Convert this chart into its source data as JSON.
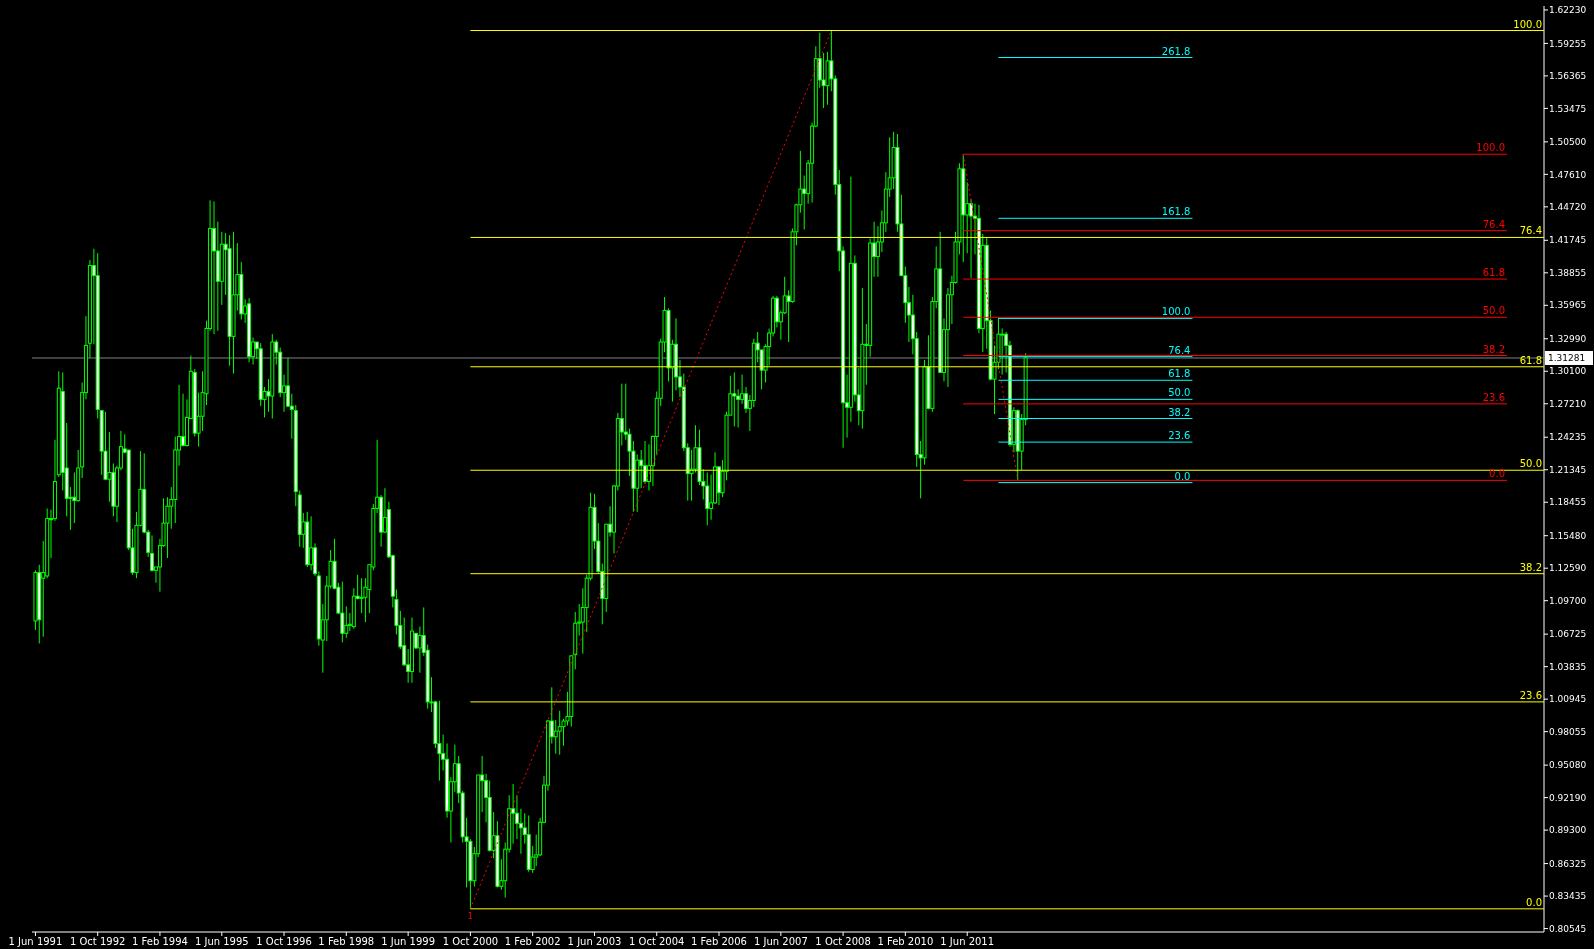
{
  "chart_data": {
    "type": "candlestick",
    "color": "#00ff00",
    "xlim": [
      "1991-05-05",
      "2023-10-18"
    ],
    "ylim": [
      0.8024,
      1.6258
    ],
    "xticks": [
      {
        "value": "1991-06-01",
        "label": "1 Jun 1991"
      },
      {
        "value": "1992-10-01",
        "label": "1 Oct 1992"
      },
      {
        "value": "1994-02-01",
        "label": "1 Feb 1994"
      },
      {
        "value": "1995-06-01",
        "label": "1 Jun 1995"
      },
      {
        "value": "1996-10-01",
        "label": "1 Oct 1996"
      },
      {
        "value": "1998-02-01",
        "label": "1 Feb 1998"
      },
      {
        "value": "1999-06-01",
        "label": "1 Jun 1999"
      },
      {
        "value": "2000-10-01",
        "label": "1 Oct 2000"
      },
      {
        "value": "2002-02-01",
        "label": "1 Feb 2002"
      },
      {
        "value": "2003-06-01",
        "label": "1 Jun 2003"
      },
      {
        "value": "2004-10-01",
        "label": "1 Oct 2004"
      },
      {
        "value": "2006-02-01",
        "label": "1 Feb 2006"
      },
      {
        "value": "2007-06-01",
        "label": "1 Jun 2007"
      },
      {
        "value": "2008-10-01",
        "label": "1 Oct 2008"
      },
      {
        "value": "2010-02-01",
        "label": "1 Feb 2010"
      },
      {
        "value": "2011-06-01",
        "label": "1 Jun 2011"
      }
    ],
    "yticks": [
      {
        "value": 1.6223,
        "label": "1.62230"
      },
      {
        "value": 1.59255,
        "label": "1.59255"
      },
      {
        "value": 1.56365,
        "label": "1.56365"
      },
      {
        "value": 1.53475,
        "label": "1.53475"
      },
      {
        "value": 1.505,
        "label": "1.50500"
      },
      {
        "value": 1.4761,
        "label": "1.47610"
      },
      {
        "value": 1.4472,
        "label": "1.44720"
      },
      {
        "value": 1.41745,
        "label": "1.41745"
      },
      {
        "value": 1.38855,
        "label": "1.38855"
      },
      {
        "value": 1.35965,
        "label": "1.35965"
      },
      {
        "value": 1.3299,
        "label": "1.32990"
      },
      {
        "value": 1.301,
        "label": "1.30100"
      },
      {
        "value": 1.2721,
        "label": "1.27210"
      },
      {
        "value": 1.24235,
        "label": "1.24235"
      },
      {
        "value": 1.21345,
        "label": "1.21345"
      },
      {
        "value": 1.18455,
        "label": "1.18455"
      },
      {
        "value": 1.1548,
        "label": "1.15480"
      },
      {
        "value": 1.1259,
        "label": "1.12590"
      },
      {
        "value": 1.097,
        "label": "1.09700"
      },
      {
        "value": 1.06725,
        "label": "1.06725"
      },
      {
        "value": 1.03835,
        "label": "1.03835"
      },
      {
        "value": 1.00945,
        "label": "1.00945"
      },
      {
        "value": 0.98055,
        "label": "0.98055"
      },
      {
        "value": 0.9508,
        "label": "0.95080"
      },
      {
        "value": 0.9219,
        "label": "0.92190"
      },
      {
        "value": 0.893,
        "label": "0.89300"
      },
      {
        "value": 0.86325,
        "label": "0.86325"
      },
      {
        "value": 0.83435,
        "label": "0.83435"
      },
      {
        "value": 0.80545,
        "label": "0.80545"
      }
    ],
    "ref_lines": [
      {
        "axis": "y",
        "value": 1.31281,
        "label": "1.31281",
        "color": "#808080"
      }
    ],
    "annotations": [
      {
        "text": "1",
        "x": "2000-10",
        "y": 0.823
      }
    ],
    "x": [
      "1991-06",
      "1991-07",
      "1991-08",
      "1991-09",
      "1991-10",
      "1991-11",
      "1991-12",
      "1992-01",
      "1992-02",
      "1992-03",
      "1992-04",
      "1992-05",
      "1992-06",
      "1992-07",
      "1992-08",
      "1992-09",
      "1992-10",
      "1992-11",
      "1992-12",
      "1993-01",
      "1993-02",
      "1993-03",
      "1993-04",
      "1993-05",
      "1993-06",
      "1993-07",
      "1993-08",
      "1993-09",
      "1993-10",
      "1993-11",
      "1993-12",
      "1994-01",
      "1994-02",
      "1994-03",
      "1994-04",
      "1994-05",
      "1994-06",
      "1994-07",
      "1994-08",
      "1994-09",
      "1994-10",
      "1994-11",
      "1994-12",
      "1995-01",
      "1995-02",
      "1995-03",
      "1995-04",
      "1995-05",
      "1995-06",
      "1995-07",
      "1995-08",
      "1995-09",
      "1995-10",
      "1995-11",
      "1995-12",
      "1996-01",
      "1996-02",
      "1996-03",
      "1996-04",
      "1996-05",
      "1996-06",
      "1996-07",
      "1996-08",
      "1996-09",
      "1996-10",
      "1996-11",
      "1996-12",
      "1997-01",
      "1997-02",
      "1997-03",
      "1997-04",
      "1997-05",
      "1997-06",
      "1997-07",
      "1997-08",
      "1997-09",
      "1997-10",
      "1997-11",
      "1997-12",
      "1998-01",
      "1998-02",
      "1998-03",
      "1998-04",
      "1998-05",
      "1998-06",
      "1998-07",
      "1998-08",
      "1998-09",
      "1998-10",
      "1998-11",
      "1998-12",
      "1999-01",
      "1999-02",
      "1999-03",
      "1999-04",
      "1999-05",
      "1999-06",
      "1999-07",
      "1999-08",
      "1999-09",
      "1999-10",
      "1999-11",
      "1999-12",
      "2000-01",
      "2000-02",
      "2000-03",
      "2000-04",
      "2000-05",
      "2000-06",
      "2000-07",
      "2000-08",
      "2000-09",
      "2000-10",
      "2000-11",
      "2000-12",
      "2001-01",
      "2001-02",
      "2001-03",
      "2001-04",
      "2001-05",
      "2001-06",
      "2001-07",
      "2001-08",
      "2001-09",
      "2001-10",
      "2001-11",
      "2001-12",
      "2002-01",
      "2002-02",
      "2002-03",
      "2002-04",
      "2002-05",
      "2002-06",
      "2002-07",
      "2002-08",
      "2002-09",
      "2002-10",
      "2002-11",
      "2002-12",
      "2003-01",
      "2003-02",
      "2003-03",
      "2003-04",
      "2003-05",
      "2003-06",
      "2003-07",
      "2003-08",
      "2003-09",
      "2003-10",
      "2003-11",
      "2003-12",
      "2004-01",
      "2004-02",
      "2004-03",
      "2004-04",
      "2004-05",
      "2004-06",
      "2004-07",
      "2004-08",
      "2004-09",
      "2004-10",
      "2004-11",
      "2004-12",
      "2005-01",
      "2005-02",
      "2005-03",
      "2005-04",
      "2005-05",
      "2005-06",
      "2005-07",
      "2005-08",
      "2005-09",
      "2005-10",
      "2005-11",
      "2005-12",
      "2006-01",
      "2006-02",
      "2006-03",
      "2006-04",
      "2006-05",
      "2006-06",
      "2006-07",
      "2006-08",
      "2006-09",
      "2006-10",
      "2006-11",
      "2006-12",
      "2007-01",
      "2007-02",
      "2007-03",
      "2007-04",
      "2007-05",
      "2007-06",
      "2007-07",
      "2007-08",
      "2007-09",
      "2007-10",
      "2007-11",
      "2007-12",
      "2008-01",
      "2008-02",
      "2008-03",
      "2008-04",
      "2008-05",
      "2008-06",
      "2008-07",
      "2008-08",
      "2008-09",
      "2008-10",
      "2008-11",
      "2008-12",
      "2009-01",
      "2009-02",
      "2009-03",
      "2009-04",
      "2009-05",
      "2009-06",
      "2009-07",
      "2009-08",
      "2009-09",
      "2009-10",
      "2009-11",
      "2009-12",
      "2010-01",
      "2010-02",
      "2010-03",
      "2010-04",
      "2010-05",
      "2010-06",
      "2010-07",
      "2010-08",
      "2010-09",
      "2010-10",
      "2010-11",
      "2010-12",
      "2011-01",
      "2011-02",
      "2011-03",
      "2011-04",
      "2011-05",
      "2011-06",
      "2011-07",
      "2011-08",
      "2011-09",
      "2011-10",
      "2011-11",
      "2011-12",
      "2012-01",
      "2012-02",
      "2012-03",
      "2012-04",
      "2012-05",
      "2012-06",
      "2012-07",
      "2012-08",
      "2012-09"
    ],
    "ohlc": [
      [
        1.079,
        1.124,
        1.071,
        1.122
      ],
      [
        1.122,
        1.129,
        1.059,
        1.08
      ],
      [
        1.117,
        1.15,
        1.065,
        1.122
      ],
      [
        1.119,
        1.179,
        1.117,
        1.17
      ],
      [
        1.17,
        1.178,
        1.135,
        1.169
      ],
      [
        1.17,
        1.24,
        1.168,
        1.203
      ],
      [
        1.209,
        1.301,
        1.207,
        1.286
      ],
      [
        1.283,
        1.3,
        1.195,
        1.211
      ],
      [
        1.215,
        1.255,
        1.172,
        1.188
      ],
      [
        1.189,
        1.198,
        1.16,
        1.188
      ],
      [
        1.189,
        1.211,
        1.166,
        1.186
      ],
      [
        1.186,
        1.231,
        1.185,
        1.215
      ],
      [
        1.216,
        1.291,
        1.206,
        1.282
      ],
      [
        1.282,
        1.35,
        1.276,
        1.324
      ],
      [
        1.326,
        1.4,
        1.313,
        1.395
      ],
      [
        1.395,
        1.41,
        1.325,
        1.386
      ],
      [
        1.386,
        1.406,
        1.259,
        1.267
      ],
      [
        1.266,
        1.266,
        1.209,
        1.23
      ],
      [
        1.23,
        1.265,
        1.204,
        1.205
      ],
      [
        1.205,
        1.247,
        1.185,
        1.211
      ],
      [
        1.211,
        1.219,
        1.172,
        1.181
      ],
      [
        1.181,
        1.217,
        1.167,
        1.215
      ],
      [
        1.215,
        1.248,
        1.213,
        1.234
      ],
      [
        1.232,
        1.245,
        1.228,
        1.229
      ],
      [
        1.231,
        1.231,
        1.142,
        1.144
      ],
      [
        1.144,
        1.161,
        1.12,
        1.122
      ],
      [
        1.122,
        1.176,
        1.117,
        1.164
      ],
      [
        1.164,
        1.23,
        1.163,
        1.196
      ],
      [
        1.196,
        1.228,
        1.157,
        1.158
      ],
      [
        1.158,
        1.16,
        1.136,
        1.14
      ],
      [
        1.139,
        1.155,
        1.123,
        1.124
      ],
      [
        1.124,
        1.127,
        1.113,
        1.127
      ],
      [
        1.127,
        1.152,
        1.105,
        1.146
      ],
      [
        1.146,
        1.188,
        1.145,
        1.166
      ],
      [
        1.166,
        1.189,
        1.135,
        1.181
      ],
      [
        1.181,
        1.198,
        1.161,
        1.187
      ],
      [
        1.187,
        1.243,
        1.166,
        1.231
      ],
      [
        1.231,
        1.289,
        1.217,
        1.243
      ],
      [
        1.243,
        1.281,
        1.234,
        1.235
      ],
      [
        1.235,
        1.276,
        1.234,
        1.26
      ],
      [
        1.259,
        1.315,
        1.259,
        1.301
      ],
      [
        1.3,
        1.303,
        1.243,
        1.246
      ],
      [
        1.246,
        1.282,
        1.234,
        1.261
      ],
      [
        1.261,
        1.301,
        1.248,
        1.282
      ],
      [
        1.281,
        1.346,
        1.271,
        1.339
      ],
      [
        1.339,
        1.453,
        1.337,
        1.428
      ],
      [
        1.428,
        1.452,
        1.334,
        1.408
      ],
      [
        1.408,
        1.434,
        1.337,
        1.381
      ],
      [
        1.381,
        1.425,
        1.36,
        1.414
      ],
      [
        1.414,
        1.424,
        1.369,
        1.409
      ],
      [
        1.41,
        1.422,
        1.306,
        1.332
      ],
      [
        1.332,
        1.425,
        1.299,
        1.369
      ],
      [
        1.369,
        1.415,
        1.355,
        1.387
      ],
      [
        1.387,
        1.398,
        1.347,
        1.352
      ],
      [
        1.352,
        1.365,
        1.344,
        1.359
      ],
      [
        1.361,
        1.366,
        1.309,
        1.314
      ],
      [
        1.314,
        1.331,
        1.307,
        1.327
      ],
      [
        1.327,
        1.327,
        1.312,
        1.321
      ],
      [
        1.321,
        1.326,
        1.27,
        1.276
      ],
      [
        1.276,
        1.287,
        1.26,
        1.283
      ],
      [
        1.283,
        1.294,
        1.265,
        1.279
      ],
      [
        1.279,
        1.334,
        1.259,
        1.327
      ],
      [
        1.327,
        1.329,
        1.307,
        1.318
      ],
      [
        1.318,
        1.322,
        1.278,
        1.282
      ],
      [
        1.282,
        1.298,
        1.265,
        1.288
      ],
      [
        1.288,
        1.313,
        1.269,
        1.27
      ],
      [
        1.27,
        1.281,
        1.241,
        1.267
      ],
      [
        1.266,
        1.271,
        1.181,
        1.194
      ],
      [
        1.191,
        1.195,
        1.145,
        1.156
      ],
      [
        1.156,
        1.175,
        1.144,
        1.167
      ],
      [
        1.167,
        1.176,
        1.127,
        1.129
      ],
      [
        1.129,
        1.172,
        1.124,
        1.144
      ],
      [
        1.144,
        1.148,
        1.119,
        1.121
      ],
      [
        1.119,
        1.123,
        1.057,
        1.063
      ],
      [
        1.062,
        1.094,
        1.033,
        1.08
      ],
      [
        1.08,
        1.119,
        1.061,
        1.11
      ],
      [
        1.11,
        1.142,
        1.108,
        1.132
      ],
      [
        1.132,
        1.152,
        1.107,
        1.108
      ],
      [
        1.109,
        1.113,
        1.085,
        1.086
      ],
      [
        1.086,
        1.114,
        1.06,
        1.068
      ],
      [
        1.068,
        1.092,
        1.064,
        1.075
      ],
      [
        1.075,
        1.086,
        1.07,
        1.076
      ],
      [
        1.074,
        1.108,
        1.072,
        1.101
      ],
      [
        1.101,
        1.12,
        1.098,
        1.099
      ],
      [
        1.099,
        1.117,
        1.086,
        1.1
      ],
      [
        1.1,
        1.117,
        1.078,
        1.109
      ],
      [
        1.107,
        1.129,
        1.086,
        1.129
      ],
      [
        1.127,
        1.183,
        1.124,
        1.179
      ],
      [
        1.179,
        1.24,
        1.175,
        1.189
      ],
      [
        1.189,
        1.191,
        1.145,
        1.158
      ],
      [
        1.158,
        1.197,
        1.157,
        1.171
      ],
      [
        1.178,
        1.185,
        1.135,
        1.136
      ],
      [
        1.137,
        1.138,
        1.091,
        1.101
      ],
      [
        1.098,
        1.107,
        1.067,
        1.075
      ],
      [
        1.075,
        1.088,
        1.054,
        1.056
      ],
      [
        1.057,
        1.082,
        1.039,
        1.04
      ],
      [
        1.04,
        1.054,
        1.024,
        1.034
      ],
      [
        1.034,
        1.082,
        1.024,
        1.07
      ],
      [
        1.068,
        1.068,
        1.054,
        1.055
      ],
      [
        1.055,
        1.074,
        1.033,
        1.066
      ],
      [
        1.066,
        1.091,
        1.048,
        1.051
      ],
      [
        1.053,
        1.058,
        1.001,
        1.007
      ],
      [
        1.007,
        1.029,
        0.998,
        1.007
      ],
      [
        1.007,
        1.008,
        0.966,
        0.97
      ],
      [
        0.97,
        1.008,
        0.937,
        0.961
      ],
      [
        0.961,
        0.978,
        0.946,
        0.956
      ],
      [
        0.956,
        0.97,
        0.904,
        0.91
      ],
      [
        0.91,
        0.94,
        0.882,
        0.936
      ],
      [
        0.936,
        0.969,
        0.927,
        0.952
      ],
      [
        0.952,
        0.959,
        0.917,
        0.926
      ],
      [
        0.926,
        0.928,
        0.882,
        0.887
      ],
      [
        0.887,
        0.904,
        0.842,
        0.883
      ],
      [
        0.883,
        0.885,
        0.823,
        0.848
      ],
      [
        0.848,
        0.878,
        0.843,
        0.872
      ],
      [
        0.872,
        0.942,
        0.869,
        0.942
      ],
      [
        0.942,
        0.959,
        0.909,
        0.937
      ],
      [
        0.937,
        0.943,
        0.9,
        0.922
      ],
      [
        0.922,
        0.937,
        0.874,
        0.875
      ],
      [
        0.875,
        0.909,
        0.868,
        0.888
      ],
      [
        0.888,
        0.901,
        0.842,
        0.843
      ],
      [
        0.843,
        0.867,
        0.84,
        0.848
      ],
      [
        0.848,
        0.882,
        0.833,
        0.876
      ],
      [
        0.876,
        0.924,
        0.873,
        0.912
      ],
      [
        0.912,
        0.934,
        0.881,
        0.908
      ],
      [
        0.908,
        0.924,
        0.885,
        0.899
      ],
      [
        0.899,
        0.912,
        0.872,
        0.895
      ],
      [
        0.895,
        0.908,
        0.881,
        0.889
      ],
      [
        0.889,
        0.906,
        0.856,
        0.858
      ],
      [
        0.858,
        0.879,
        0.855,
        0.869
      ],
      [
        0.869,
        0.889,
        0.861,
        0.871
      ],
      [
        0.871,
        0.904,
        0.87,
        0.9
      ],
      [
        0.9,
        0.941,
        0.899,
        0.933
      ],
      [
        0.933,
        0.991,
        0.928,
        0.99
      ],
      [
        0.99,
        1.02,
        0.97,
        0.976
      ],
      [
        0.976,
        0.991,
        0.961,
        0.981
      ],
      [
        0.981,
        0.999,
        0.96,
        0.985
      ],
      [
        0.985,
        0.992,
        0.968,
        0.99
      ],
      [
        0.99,
        1.016,
        0.986,
        0.994
      ],
      [
        0.994,
        1.048,
        0.985,
        1.048
      ],
      [
        1.049,
        1.087,
        1.036,
        1.077
      ],
      [
        1.077,
        1.094,
        1.066,
        1.078
      ],
      [
        1.078,
        1.108,
        1.05,
        1.091
      ],
      [
        1.091,
        1.12,
        1.069,
        1.117
      ],
      [
        1.117,
        1.193,
        1.115,
        1.18
      ],
      [
        1.18,
        1.192,
        1.143,
        1.15
      ],
      [
        1.15,
        1.166,
        1.121,
        1.123
      ],
      [
        1.123,
        1.13,
        1.076,
        1.099
      ],
      [
        1.099,
        1.165,
        1.087,
        1.165
      ],
      [
        1.165,
        1.181,
        1.154,
        1.158
      ],
      [
        1.158,
        1.2,
        1.139,
        1.199
      ],
      [
        1.199,
        1.264,
        1.195,
        1.259
      ],
      [
        1.259,
        1.29,
        1.235,
        1.247
      ],
      [
        1.247,
        1.29,
        1.24,
        1.245
      ],
      [
        1.245,
        1.25,
        1.208,
        1.23
      ],
      [
        1.23,
        1.239,
        1.176,
        1.197
      ],
      [
        1.197,
        1.227,
        1.176,
        1.222
      ],
      [
        1.222,
        1.231,
        1.197,
        1.217
      ],
      [
        1.217,
        1.239,
        1.201,
        1.203
      ],
      [
        1.203,
        1.236,
        1.195,
        1.217
      ],
      [
        1.217,
        1.244,
        1.199,
        1.243
      ],
      [
        1.243,
        1.283,
        1.227,
        1.277
      ],
      [
        1.277,
        1.33,
        1.27,
        1.327
      ],
      [
        1.327,
        1.367,
        1.318,
        1.355
      ],
      [
        1.355,
        1.357,
        1.292,
        1.304
      ],
      [
        1.304,
        1.329,
        1.274,
        1.325
      ],
      [
        1.325,
        1.348,
        1.284,
        1.296
      ],
      [
        1.296,
        1.311,
        1.278,
        1.287
      ],
      [
        1.287,
        1.299,
        1.23,
        1.233
      ],
      [
        1.233,
        1.237,
        1.186,
        1.21
      ],
      [
        1.21,
        1.231,
        1.186,
        1.214
      ],
      [
        1.214,
        1.253,
        1.211,
        1.233
      ],
      [
        1.233,
        1.249,
        1.2,
        1.203
      ],
      [
        1.203,
        1.214,
        1.187,
        1.199
      ],
      [
        1.199,
        1.211,
        1.164,
        1.179
      ],
      [
        1.179,
        1.209,
        1.169,
        1.184
      ],
      [
        1.184,
        1.229,
        1.183,
        1.216
      ],
      [
        1.216,
        1.216,
        1.182,
        1.193
      ],
      [
        1.193,
        1.222,
        1.189,
        1.212
      ],
      [
        1.212,
        1.265,
        1.204,
        1.262
      ],
      [
        1.262,
        1.297,
        1.262,
        1.281
      ],
      [
        1.281,
        1.3,
        1.252,
        1.279
      ],
      [
        1.279,
        1.285,
        1.251,
        1.276
      ],
      [
        1.276,
        1.298,
        1.272,
        1.281
      ],
      [
        1.281,
        1.287,
        1.264,
        1.268
      ],
      [
        1.268,
        1.28,
        1.248,
        1.275
      ],
      [
        1.275,
        1.33,
        1.269,
        1.326
      ],
      [
        1.326,
        1.336,
        1.309,
        1.32
      ],
      [
        1.32,
        1.32,
        1.285,
        1.302
      ],
      [
        1.302,
        1.325,
        1.291,
        1.323
      ],
      [
        1.323,
        1.339,
        1.306,
        1.335
      ],
      [
        1.335,
        1.368,
        1.332,
        1.366
      ],
      [
        1.366,
        1.368,
        1.34,
        1.345
      ],
      [
        1.345,
        1.355,
        1.329,
        1.353
      ],
      [
        1.353,
        1.385,
        1.352,
        1.368
      ],
      [
        1.368,
        1.373,
        1.327,
        1.363
      ],
      [
        1.363,
        1.428,
        1.362,
        1.425
      ],
      [
        1.425,
        1.45,
        1.413,
        1.449
      ],
      [
        1.449,
        1.497,
        1.442,
        1.463
      ],
      [
        1.463,
        1.475,
        1.427,
        1.459
      ],
      [
        1.459,
        1.489,
        1.45,
        1.486
      ],
      [
        1.486,
        1.522,
        1.451,
        1.519
      ],
      [
        1.519,
        1.59,
        1.518,
        1.579
      ],
      [
        1.579,
        1.602,
        1.553,
        1.56
      ],
      [
        1.56,
        1.584,
        1.535,
        1.555
      ],
      [
        1.555,
        1.585,
        1.538,
        1.577
      ],
      [
        1.577,
        1.604,
        1.55,
        1.561
      ],
      [
        1.561,
        1.564,
        1.458,
        1.467
      ],
      [
        1.467,
        1.48,
        1.39,
        1.408
      ],
      [
        1.408,
        1.412,
        1.233,
        1.273
      ],
      [
        1.273,
        1.298,
        1.242,
        1.269
      ],
      [
        1.269,
        1.474,
        1.256,
        1.397
      ],
      [
        1.397,
        1.404,
        1.274,
        1.28
      ],
      [
        1.28,
        1.304,
        1.253,
        1.266
      ],
      [
        1.266,
        1.375,
        1.25,
        1.325
      ],
      [
        1.325,
        1.343,
        1.289,
        1.324
      ],
      [
        1.324,
        1.419,
        1.314,
        1.415
      ],
      [
        1.415,
        1.434,
        1.385,
        1.403
      ],
      [
        1.403,
        1.43,
        1.385,
        1.416
      ],
      [
        1.416,
        1.444,
        1.407,
        1.433
      ],
      [
        1.433,
        1.478,
        1.425,
        1.463
      ],
      [
        1.463,
        1.509,
        1.456,
        1.473
      ],
      [
        1.473,
        1.514,
        1.463,
        1.5
      ],
      [
        1.5,
        1.512,
        1.425,
        1.432
      ],
      [
        1.432,
        1.458,
        1.386,
        1.386
      ],
      [
        1.386,
        1.394,
        1.344,
        1.362
      ],
      [
        1.362,
        1.376,
        1.327,
        1.351
      ],
      [
        1.351,
        1.369,
        1.316,
        1.33
      ],
      [
        1.33,
        1.336,
        1.216,
        1.227
      ],
      [
        1.227,
        1.239,
        1.188,
        1.224
      ],
      [
        1.224,
        1.311,
        1.218,
        1.305
      ],
      [
        1.305,
        1.333,
        1.267,
        1.268
      ],
      [
        1.268,
        1.367,
        1.265,
        1.363
      ],
      [
        1.363,
        1.412,
        1.357,
        1.392
      ],
      [
        1.392,
        1.425,
        1.3,
        1.3
      ],
      [
        1.3,
        1.348,
        1.292,
        1.338
      ],
      [
        1.338,
        1.375,
        1.287,
        1.369
      ],
      [
        1.369,
        1.386,
        1.343,
        1.38
      ],
      [
        1.38,
        1.425,
        1.379,
        1.416
      ],
      [
        1.416,
        1.486,
        1.405,
        1.481
      ],
      [
        1.481,
        1.494,
        1.398,
        1.44
      ],
      [
        1.44,
        1.469,
        1.406,
        1.45
      ],
      [
        1.45,
        1.454,
        1.384,
        1.439
      ],
      [
        1.439,
        1.45,
        1.405,
        1.437
      ],
      [
        1.437,
        1.449,
        1.335,
        1.339
      ],
      [
        1.339,
        1.423,
        1.318,
        1.413
      ],
      [
        1.413,
        1.42,
        1.321,
        1.346
      ],
      [
        1.346,
        1.355,
        1.293,
        1.294
      ],
      [
        1.294,
        1.324,
        1.263,
        1.309
      ],
      [
        1.309,
        1.349,
        1.303,
        1.334
      ],
      [
        1.334,
        1.339,
        1.298,
        1.334
      ],
      [
        1.334,
        1.336,
        1.3,
        1.324
      ],
      [
        1.324,
        1.328,
        1.234,
        1.236
      ],
      [
        1.236,
        1.269,
        1.229,
        1.266
      ],
      [
        1.266,
        1.267,
        1.204,
        1.23
      ],
      [
        1.23,
        1.263,
        1.213,
        1.258
      ],
      [
        1.258,
        1.317,
        1.253,
        1.313
      ]
    ],
    "series": [
      {
        "type": "line",
        "x": [
          "2000-10",
          "2008-07"
        ],
        "values": [
          0.823,
          1.604
        ],
        "color": "#ff0000",
        "line_style": "dotted"
      },
      {
        "type": "line",
        "x": [
          "2011-05",
          "2012-07"
        ],
        "values": [
          1.494,
          1.204
        ],
        "color": "#ff0000",
        "line_style": "dotted"
      },
      {
        "type": "line",
        "name": "0.0",
        "x": [
          "2000-10",
          "2023-10-18"
        ],
        "values": [
          0.823,
          0.823
        ],
        "color": "#ffff00"
      },
      {
        "type": "line",
        "name": "23.6",
        "x": [
          "2000-10",
          "2023-10-18"
        ],
        "values": [
          1.007,
          1.007
        ],
        "color": "#ffff00"
      },
      {
        "type": "line",
        "name": "38.2",
        "x": [
          "2000-10",
          "2023-10-18"
        ],
        "values": [
          1.121,
          1.121
        ],
        "color": "#ffff00"
      },
      {
        "type": "line",
        "name": "50.0",
        "x": [
          "2000-10",
          "2023-10-18"
        ],
        "values": [
          1.213,
          1.213
        ],
        "color": "#ffff00"
      },
      {
        "type": "line",
        "name": "61.8",
        "x": [
          "2000-10",
          "2023-10-18"
        ],
        "values": [
          1.305,
          1.305
        ],
        "color": "#ffff00"
      },
      {
        "type": "line",
        "name": "76.4",
        "x": [
          "2000-10",
          "2023-10-18"
        ],
        "values": [
          1.42,
          1.42
        ],
        "color": "#ffff00"
      },
      {
        "type": "line",
        "name": "100.0",
        "x": [
          "2000-10",
          "2023-10-18"
        ],
        "values": [
          1.604,
          1.604
        ],
        "color": "#ffff00"
      },
      {
        "type": "line",
        "name": "0.0",
        "x": [
          "2011-05",
          "2023-01"
        ],
        "values": [
          1.204,
          1.204
        ],
        "color": "#ff0000"
      },
      {
        "type": "line",
        "name": "23.6",
        "x": [
          "2011-05",
          "2023-01"
        ],
        "values": [
          1.272,
          1.272
        ],
        "color": "#ff0000"
      },
      {
        "type": "line",
        "name": "38.2",
        "x": [
          "2011-05",
          "2023-01"
        ],
        "values": [
          1.315,
          1.315
        ],
        "color": "#ff0000"
      },
      {
        "type": "line",
        "name": "50.0",
        "x": [
          "2011-05",
          "2023-01"
        ],
        "values": [
          1.349,
          1.349
        ],
        "color": "#ff0000"
      },
      {
        "type": "line",
        "name": "61.8",
        "x": [
          "2011-05",
          "2023-01"
        ],
        "values": [
          1.383,
          1.383
        ],
        "color": "#ff0000"
      },
      {
        "type": "line",
        "name": "76.4",
        "x": [
          "2011-05",
          "2023-01"
        ],
        "values": [
          1.426,
          1.426
        ],
        "color": "#ff0000"
      },
      {
        "type": "line",
        "name": "100.0",
        "x": [
          "2011-05",
          "2023-01"
        ],
        "values": [
          1.494,
          1.494
        ],
        "color": "#ff0000"
      },
      {
        "type": "line",
        "name": "0.0",
        "x": [
          "2012-02",
          "2016-04"
        ],
        "values": [
          1.202,
          1.202
        ],
        "color": "#00ffff"
      },
      {
        "type": "line",
        "name": "23.6",
        "x": [
          "2012-02",
          "2016-04"
        ],
        "values": [
          1.238,
          1.238
        ],
        "color": "#00ffff"
      },
      {
        "type": "line",
        "name": "38.2",
        "x": [
          "2012-02",
          "2016-04"
        ],
        "values": [
          1.259,
          1.259
        ],
        "color": "#00ffff"
      },
      {
        "type": "line",
        "name": "50.0",
        "x": [
          "2012-02",
          "2016-04"
        ],
        "values": [
          1.276,
          1.276
        ],
        "color": "#00ffff"
      },
      {
        "type": "line",
        "name": "61.8",
        "x": [
          "2012-02",
          "2016-04"
        ],
        "values": [
          1.293,
          1.293
        ],
        "color": "#00ffff"
      },
      {
        "type": "line",
        "name": "76.4",
        "x": [
          "2012-02",
          "2016-04"
        ],
        "values": [
          1.314,
          1.314
        ],
        "color": "#00ffff"
      },
      {
        "type": "line",
        "name": "100.0",
        "x": [
          "2012-02",
          "2016-04"
        ],
        "values": [
          1.348,
          1.348
        ],
        "color": "#00ffff"
      },
      {
        "type": "line",
        "name": "161.8",
        "x": [
          "2012-02",
          "2016-04"
        ],
        "values": [
          1.437,
          1.437
        ],
        "color": "#00ffff"
      },
      {
        "type": "line",
        "name": "261.8",
        "x": [
          "2012-02",
          "2016-04"
        ],
        "values": [
          1.58,
          1.58
        ],
        "color": "#00ffff"
      }
    ]
  }
}
